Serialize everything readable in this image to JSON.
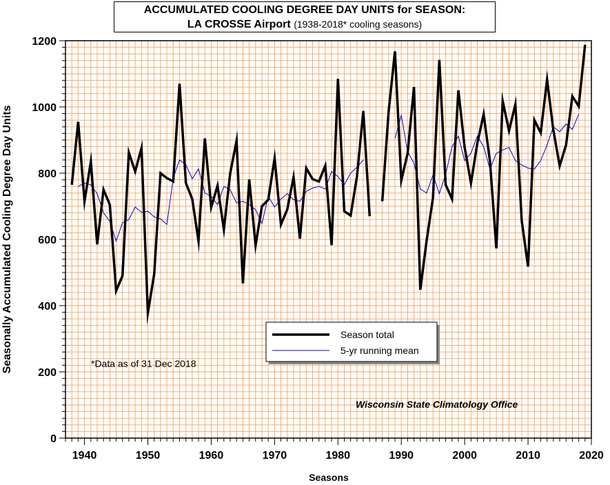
{
  "title": {
    "line1": "ACCUMULATED COOLING DEGREE DAY UNITS for SEASON:",
    "line2_bold": "LA CROSSE Airport",
    "line2_sub": "(1938-2018* cooling seasons)"
  },
  "annotations": {
    "data_note": "*Data as of 31 Dec 2018",
    "credit": "Wisconsin State Climatology Office"
  },
  "colors": {
    "grid": "#f4a460",
    "season_total": "#000000",
    "running_mean": "#0000cc"
  },
  "chart_data": {
    "type": "line",
    "title": "ACCUMULATED COOLING DEGREE DAY UNITS for SEASON: LA CROSSE Airport (1938-2018* cooling seasons)",
    "xlabel": "Seasons",
    "ylabel": "Seasonally Accumulated Cooling Degree Day Units",
    "xlim": [
      1937,
      2020
    ],
    "ylim": [
      0,
      1200
    ],
    "x_ticks": [
      1940,
      1950,
      1960,
      1970,
      1980,
      1990,
      2000,
      2010,
      2020
    ],
    "y_ticks": [
      0,
      200,
      400,
      600,
      800,
      1000,
      1200
    ],
    "grid": true,
    "legend_position": "center",
    "series": [
      {
        "name": "Season total",
        "points": [
          [
            1938,
            765
          ],
          [
            1939,
            955
          ],
          [
            1940,
            715
          ],
          [
            1941,
            835
          ],
          [
            1942,
            585
          ],
          [
            1943,
            750
          ],
          [
            1944,
            705
          ],
          [
            1945,
            445
          ],
          [
            1946,
            490
          ],
          [
            1947,
            862
          ],
          [
            1948,
            805
          ],
          [
            1949,
            876
          ],
          [
            1950,
            378
          ],
          [
            1951,
            495
          ],
          [
            1952,
            800
          ],
          [
            1953,
            785
          ],
          [
            1954,
            775
          ],
          [
            1955,
            1070
          ],
          [
            1956,
            770
          ],
          [
            1957,
            722
          ],
          [
            1958,
            595
          ],
          [
            1959,
            905
          ],
          [
            1960,
            697
          ],
          [
            1961,
            762
          ],
          [
            1962,
            630
          ],
          [
            1963,
            800
          ],
          [
            1964,
            898
          ],
          [
            1965,
            467
          ],
          [
            1966,
            781
          ],
          [
            1967,
            582
          ],
          [
            1968,
            700
          ],
          [
            1969,
            720
          ],
          [
            1970,
            845
          ],
          [
            1971,
            645
          ],
          [
            1972,
            690
          ],
          [
            1973,
            788
          ],
          [
            1974,
            602
          ],
          [
            1975,
            815
          ],
          [
            1976,
            782
          ],
          [
            1977,
            775
          ],
          [
            1978,
            822
          ],
          [
            1979,
            583
          ],
          [
            1980,
            1085
          ],
          [
            1981,
            685
          ],
          [
            1982,
            672
          ],
          [
            1983,
            790
          ],
          [
            1984,
            988
          ],
          [
            1985,
            670
          ],
          null,
          [
            1987,
            715
          ],
          [
            1988,
            985
          ],
          [
            1989,
            1168
          ],
          [
            1990,
            778
          ],
          [
            1991,
            860
          ],
          [
            1992,
            1060
          ],
          [
            1993,
            448
          ],
          [
            1994,
            597
          ],
          [
            1995,
            726
          ],
          [
            1996,
            1142
          ],
          [
            1997,
            765
          ],
          [
            1998,
            722
          ],
          [
            1999,
            1050
          ],
          [
            2000,
            878
          ],
          [
            2001,
            770
          ],
          [
            2002,
            890
          ],
          [
            2003,
            978
          ],
          [
            2004,
            835
          ],
          [
            2005,
            573
          ],
          [
            2006,
            1018
          ],
          [
            2007,
            928
          ],
          [
            2008,
            1008
          ],
          [
            2009,
            657
          ],
          [
            2010,
            518
          ],
          [
            2011,
            960
          ],
          [
            2012,
            922
          ],
          [
            2013,
            1082
          ],
          [
            2014,
            930
          ],
          [
            2015,
            822
          ],
          [
            2016,
            885
          ],
          [
            2017,
            1032
          ],
          [
            2018,
            1002
          ],
          [
            2019,
            1188
          ]
        ]
      },
      {
        "name": "5-yr running mean",
        "points": [
          [
            1939,
            760
          ],
          [
            1940,
            770
          ],
          [
            1941,
            765
          ],
          [
            1942,
            738
          ],
          [
            1943,
            680
          ],
          [
            1944,
            655
          ],
          [
            1945,
            595
          ],
          [
            1946,
            650
          ],
          [
            1947,
            660
          ],
          [
            1948,
            698
          ],
          [
            1949,
            682
          ],
          [
            1950,
            685
          ],
          [
            1951,
            668
          ],
          [
            1952,
            662
          ],
          [
            1953,
            645
          ],
          [
            1954,
            785
          ],
          [
            1955,
            840
          ],
          [
            1956,
            825
          ],
          [
            1957,
            783
          ],
          [
            1958,
            813
          ],
          [
            1959,
            740
          ],
          [
            1960,
            730
          ],
          [
            1961,
            705
          ],
          [
            1962,
            760
          ],
          [
            1963,
            750
          ],
          [
            1964,
            710
          ],
          [
            1965,
            715
          ],
          [
            1966,
            705
          ],
          [
            1967,
            690
          ],
          [
            1968,
            648
          ],
          [
            1969,
            730
          ],
          [
            1970,
            698
          ],
          [
            1971,
            722
          ],
          [
            1972,
            738
          ],
          [
            1973,
            720
          ],
          [
            1974,
            715
          ],
          [
            1975,
            745
          ],
          [
            1976,
            755
          ],
          [
            1977,
            760
          ],
          [
            1978,
            752
          ],
          [
            1979,
            805
          ],
          [
            1980,
            790
          ],
          [
            1981,
            765
          ],
          [
            1982,
            800
          ],
          [
            1983,
            818
          ],
          [
            1984,
            840
          ],
          null,
          [
            1989,
            905
          ],
          [
            1990,
            975
          ],
          [
            1991,
            865
          ],
          [
            1992,
            830
          ],
          [
            1993,
            752
          ],
          [
            1994,
            740
          ],
          [
            1995,
            795
          ],
          [
            1996,
            738
          ],
          [
            1997,
            797
          ],
          [
            1998,
            880
          ],
          [
            1999,
            912
          ],
          [
            2000,
            838
          ],
          [
            2001,
            860
          ],
          [
            2002,
            912
          ],
          [
            2003,
            880
          ],
          [
            2004,
            812
          ],
          [
            2005,
            860
          ],
          [
            2006,
            870
          ],
          [
            2007,
            878
          ],
          [
            2008,
            838
          ],
          [
            2009,
            825
          ],
          [
            2010,
            815
          ],
          [
            2011,
            812
          ],
          [
            2012,
            838
          ],
          [
            2013,
            885
          ],
          [
            2014,
            940
          ],
          [
            2015,
            925
          ],
          [
            2016,
            948
          ],
          [
            2017,
            932
          ],
          [
            2018,
            978
          ]
        ]
      }
    ]
  }
}
